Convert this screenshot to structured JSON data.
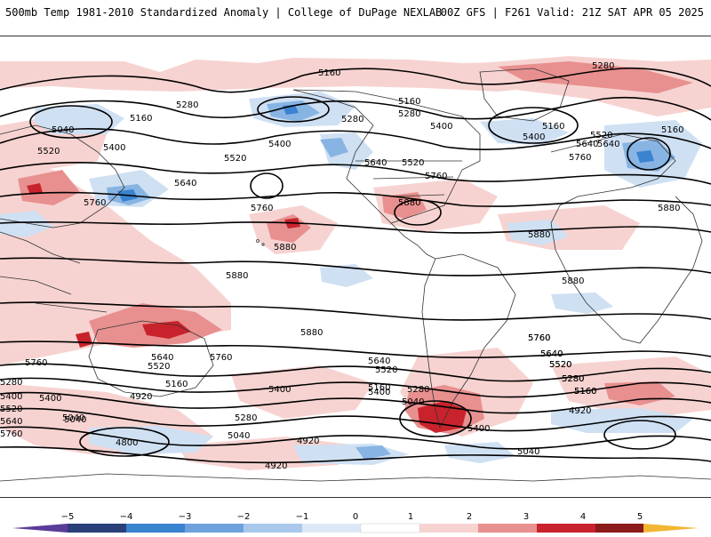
{
  "header": {
    "title_left": "500mb Temp 1981-2010 Standardized Anomaly | College of DuPage NEXLAB",
    "title_right": "00Z GFS | F261 Valid: 21Z SAT APR 05 2025"
  },
  "map": {
    "contour_labels": [
      "5160",
      "5280",
      "5160",
      "5280",
      "5040",
      "5400",
      "5520",
      "5640",
      "5760",
      "5160",
      "5280",
      "5400",
      "5520",
      "5640",
      "5760",
      "5880",
      "5160",
      "5400",
      "5520",
      "5640",
      "5760",
      "5880",
      "5880",
      "5160",
      "5280",
      "5400",
      "5520",
      "5640",
      "5760",
      "5880",
      "5880",
      "5880",
      "5280",
      "5400",
      "5520",
      "5640",
      "5760",
      "5880",
      "5760",
      "5640",
      "5520",
      "5400",
      "5280",
      "5160",
      "5040",
      "4920",
      "4800",
      "5040",
      "4920",
      "4920",
      "5400",
      "5520",
      "5640",
      "5760",
      "5160",
      "5280",
      "5040",
      "5400",
      "5040",
      "5280",
      "5160",
      "5400",
      "5520",
      "5640",
      "5760",
      "5040",
      "4920",
      "5280",
      "5160",
      "5520",
      "5640",
      "5760"
    ],
    "colors": {
      "warm_light": "#f6d3d1",
      "warm_mid": "#e8908f",
      "warm_dark": "#c8232c",
      "cool_light": "#cfe0f3",
      "cool_mid": "#88b4e3",
      "cool_dark": "#3a83d0",
      "contour": "#000000",
      "coastline": "#333333"
    }
  },
  "colorbar": {
    "ticks": [
      "−5",
      "−4",
      "−3",
      "−2",
      "−1",
      "0",
      "1",
      "2",
      "3",
      "4",
      "5"
    ],
    "colors": [
      "#5a3c9a",
      "#2b3f7a",
      "#3a83d0",
      "#6fa2dc",
      "#a9c8ec",
      "#dce8f5",
      "#ffffff",
      "#f6d3d1",
      "#e8908f",
      "#c8232c",
      "#8b1a1a",
      "#f2b632"
    ]
  }
}
